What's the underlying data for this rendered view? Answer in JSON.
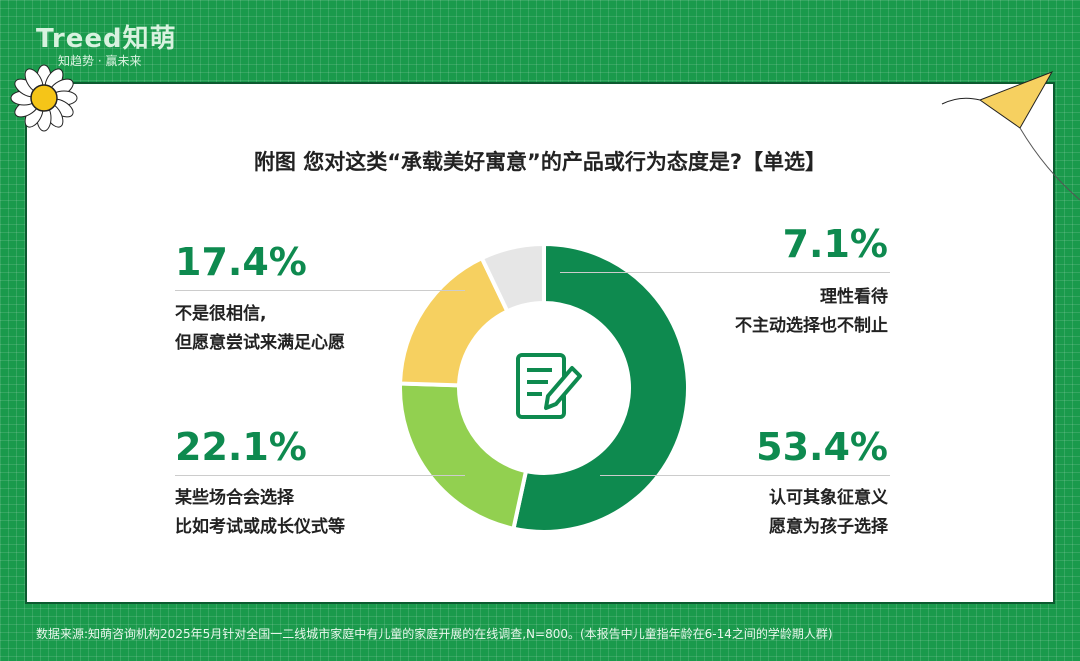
{
  "brand": {
    "logo": "Treed知萌",
    "slogan": "知趋势 · 赢未来"
  },
  "title": "附图 您对这类“承载美好寓意”的产品或行为态度是?【单选】",
  "source": "数据来源:知萌咨询机构2025年5月针对全国一二线城市家庭中有儿童的家庭开展的在线调查,N=800。(本报告中儿童指年龄在6-14之间的学龄期人群)",
  "chart_data": {
    "type": "pie",
    "donut": true,
    "center_icon": "document-edit-icon",
    "slices": [
      {
        "label_line1": "认可其象征意义",
        "label_line2": "愿意为孩子选择",
        "value": 53.4,
        "display": "53.4%",
        "color": "#0e8a4f"
      },
      {
        "label_line1": "某些场合会选择",
        "label_line2": "比如考试或成长仪式等",
        "value": 22.1,
        "display": "22.1%",
        "color": "#92d050"
      },
      {
        "label_line1": "不是很相信,",
        "label_line2": "但愿意尝试来满足心愿",
        "value": 17.4,
        "display": "17.4%",
        "color": "#f6d060"
      },
      {
        "label_line1": "理性看待",
        "label_line2": "不主动选择也不制止",
        "value": 7.1,
        "display": "7.1%",
        "color": "#e6e6e6"
      }
    ]
  }
}
